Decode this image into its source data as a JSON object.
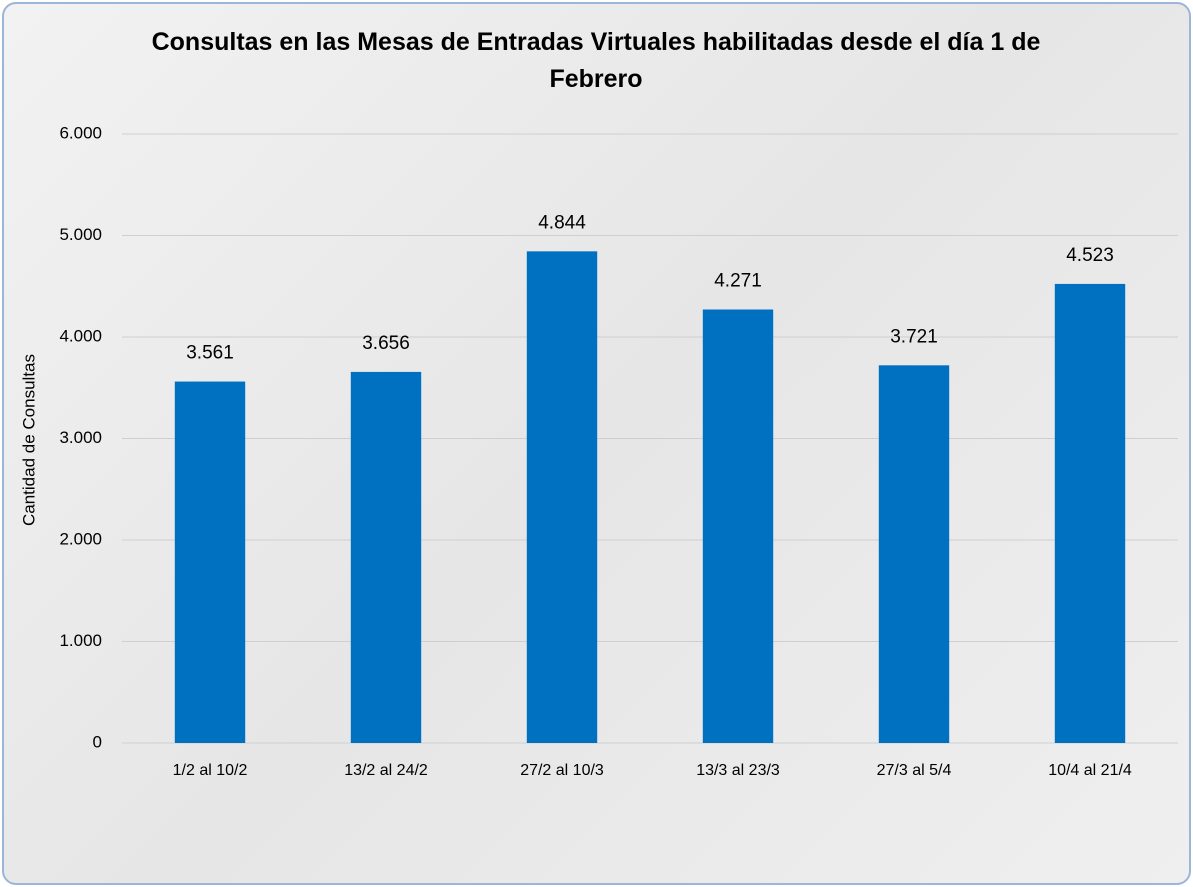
{
  "chart_data": {
    "type": "bar",
    "title": "Consultas en las Mesas de Entradas Virtuales habilitadas desde el día 1 de Febrero",
    "y_label": "Cantidad de Consultas",
    "categories": [
      "1/2 al 10/2",
      "13/2 al 24/2",
      "27/2 al 10/3",
      "13/3 al 23/3",
      "27/3 al 5/4",
      "10/4 al 21/4"
    ],
    "values": [
      3561,
      3656,
      4844,
      4271,
      3721,
      4523
    ],
    "value_labels": [
      "3.561",
      "3.656",
      "4.844",
      "4.271",
      "3.721",
      "4.523"
    ],
    "color": "#0070c0",
    "ylim": [
      0,
      6000
    ],
    "yticks": [
      0,
      {
        "value": 1000,
        "label": "1.000"
      },
      {
        "value": 2000,
        "label": "2.000"
      },
      {
        "value": 3000,
        "label": "3.000"
      },
      {
        "value": 4000,
        "label": "4.000"
      },
      {
        "value": 5000,
        "label": "5.000"
      },
      {
        "value": 6000,
        "label": "6.000"
      }
    ],
    "grid": true
  }
}
